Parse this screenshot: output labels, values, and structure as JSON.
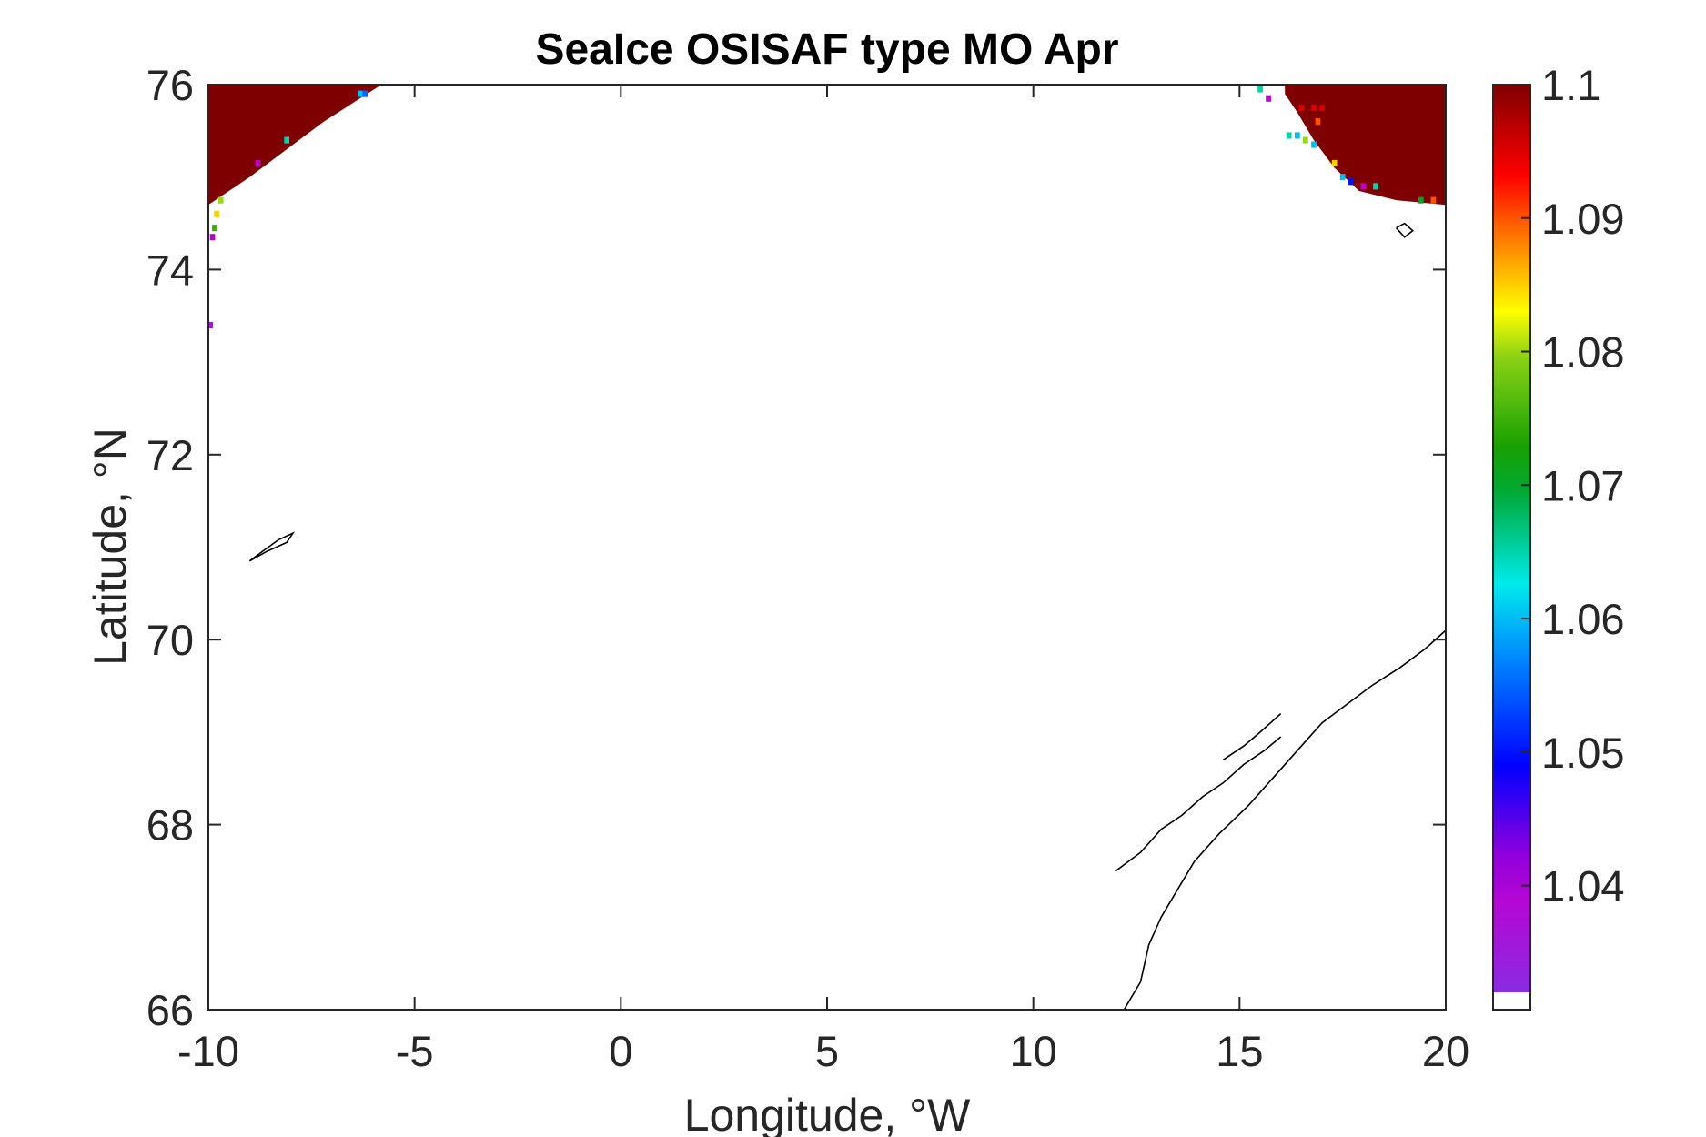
{
  "chart_data": {
    "type": "heatmap",
    "title": "SeaIce OSISAF type MO Apr",
    "xlabel": "Longitude, °W",
    "ylabel": "Latitude, °N",
    "xlim": [
      -10,
      20
    ],
    "ylim": [
      66,
      76
    ],
    "xticks": [
      -10,
      -5,
      0,
      5,
      10,
      15,
      20
    ],
    "yticks": [
      66,
      68,
      70,
      72,
      74,
      76
    ],
    "xtick_labels": [
      "-10",
      "-5",
      "0",
      "5",
      "10",
      "15",
      "20"
    ],
    "ytick_labels": [
      "66",
      "68",
      "70",
      "72",
      "74",
      "76"
    ],
    "colorbar": {
      "range": [
        1.032,
        1.1
      ],
      "ticks": [
        1.04,
        1.05,
        1.06,
        1.07,
        1.08,
        1.09,
        1.1
      ],
      "tick_labels": [
        "1.04",
        "1.05",
        "1.06",
        "1.07",
        "1.08",
        "1.09",
        "1.1"
      ],
      "colormap": "jet-like (violet → blue → cyan → green → yellow → red → dark red)",
      "below_range_color": "#ffffff"
    },
    "grid": false,
    "regions": [
      {
        "name": "north-west ice edge",
        "value": 1.1,
        "color": "#7f0000",
        "outline": [
          [
            -10,
            76
          ],
          [
            -5.8,
            76
          ],
          [
            -6.5,
            75.8
          ],
          [
            -7.2,
            75.6
          ],
          [
            -7.8,
            75.4
          ],
          [
            -8.4,
            75.2
          ],
          [
            -9.0,
            75.0
          ],
          [
            -9.5,
            74.85
          ],
          [
            -10,
            74.7
          ]
        ],
        "edge_cells": [
          {
            "lon": -6.3,
            "lat": 75.9,
            "value": 1.06
          },
          {
            "lon": -6.2,
            "lat": 75.9,
            "value": 1.055
          },
          {
            "lon": -8.1,
            "lat": 75.4,
            "value": 1.065
          },
          {
            "lon": -8.8,
            "lat": 75.15,
            "value": 1.04
          },
          {
            "lon": -9.7,
            "lat": 74.75,
            "value": 1.08
          },
          {
            "lon": -9.8,
            "lat": 74.6,
            "value": 1.085
          },
          {
            "lon": -9.85,
            "lat": 74.45,
            "value": 1.075
          },
          {
            "lon": -9.9,
            "lat": 74.35,
            "value": 1.04
          },
          {
            "lon": -9.95,
            "lat": 73.4,
            "value": 1.035
          }
        ]
      },
      {
        "name": "north-east ice edge",
        "value": 1.1,
        "color": "#7f0000",
        "outline": [
          [
            16.1,
            76
          ],
          [
            20,
            76
          ],
          [
            20,
            74.7
          ],
          [
            18.8,
            74.75
          ],
          [
            17.9,
            74.85
          ],
          [
            17.3,
            75.1
          ],
          [
            16.8,
            75.4
          ],
          [
            16.4,
            75.7
          ],
          [
            16.1,
            75.9
          ]
        ],
        "edge_cells": [
          {
            "lon": 16.5,
            "lat": 75.75,
            "value": 1.095
          },
          {
            "lon": 16.8,
            "lat": 75.75,
            "value": 1.095
          },
          {
            "lon": 17.0,
            "lat": 75.75,
            "value": 1.095
          },
          {
            "lon": 16.9,
            "lat": 75.6,
            "value": 1.09
          },
          {
            "lon": 16.2,
            "lat": 75.45,
            "value": 1.065
          },
          {
            "lon": 16.4,
            "lat": 75.45,
            "value": 1.06
          },
          {
            "lon": 16.6,
            "lat": 75.4,
            "value": 1.08
          },
          {
            "lon": 16.8,
            "lat": 75.35,
            "value": 1.06
          },
          {
            "lon": 17.3,
            "lat": 75.15,
            "value": 1.085
          },
          {
            "lon": 17.5,
            "lat": 75.0,
            "value": 1.06
          },
          {
            "lon": 17.7,
            "lat": 74.95,
            "value": 1.05
          },
          {
            "lon": 18.0,
            "lat": 74.9,
            "value": 1.04
          },
          {
            "lon": 18.3,
            "lat": 74.9,
            "value": 1.065
          },
          {
            "lon": 19.4,
            "lat": 74.75,
            "value": 1.07
          },
          {
            "lon": 19.7,
            "lat": 74.75,
            "value": 1.09
          },
          {
            "lon": 15.5,
            "lat": 75.95,
            "value": 1.065
          },
          {
            "lon": 15.7,
            "lat": 75.85,
            "value": 1.04
          }
        ]
      }
    ],
    "coastlines": [
      {
        "name": "Jan Mayen",
        "points": [
          [
            -9.0,
            70.85
          ],
          [
            -8.7,
            70.95
          ],
          [
            -8.3,
            71.08
          ],
          [
            -7.95,
            71.15
          ],
          [
            -8.1,
            71.05
          ],
          [
            -8.6,
            70.95
          ],
          [
            -9.0,
            70.85
          ]
        ]
      },
      {
        "name": "Bear Island",
        "points": [
          [
            18.8,
            74.45
          ],
          [
            19.0,
            74.5
          ],
          [
            19.2,
            74.42
          ],
          [
            19.0,
            74.35
          ],
          [
            18.8,
            74.45
          ]
        ]
      },
      {
        "name": "Norwegian coast",
        "points": [
          [
            12.2,
            66.0
          ],
          [
            12.6,
            66.3
          ],
          [
            12.8,
            66.7
          ],
          [
            13.1,
            67.0
          ],
          [
            13.5,
            67.3
          ],
          [
            13.9,
            67.6
          ],
          [
            14.5,
            67.9
          ],
          [
            15.2,
            68.2
          ],
          [
            15.8,
            68.5
          ],
          [
            16.4,
            68.8
          ],
          [
            17.0,
            69.1
          ],
          [
            17.6,
            69.3
          ],
          [
            18.2,
            69.5
          ],
          [
            18.9,
            69.7
          ],
          [
            19.5,
            69.9
          ],
          [
            20.0,
            70.1
          ]
        ]
      },
      {
        "name": "Lofoten",
        "points": [
          [
            12.0,
            67.5
          ],
          [
            12.6,
            67.7
          ],
          [
            13.1,
            67.95
          ],
          [
            13.6,
            68.1
          ],
          [
            14.1,
            68.3
          ],
          [
            14.6,
            68.45
          ],
          [
            15.1,
            68.65
          ],
          [
            15.6,
            68.8
          ],
          [
            16.0,
            68.95
          ]
        ]
      },
      {
        "name": "Vesteralen",
        "points": [
          [
            14.6,
            68.7
          ],
          [
            15.1,
            68.85
          ],
          [
            15.5,
            69.0
          ],
          [
            16.0,
            69.2
          ]
        ]
      }
    ]
  }
}
